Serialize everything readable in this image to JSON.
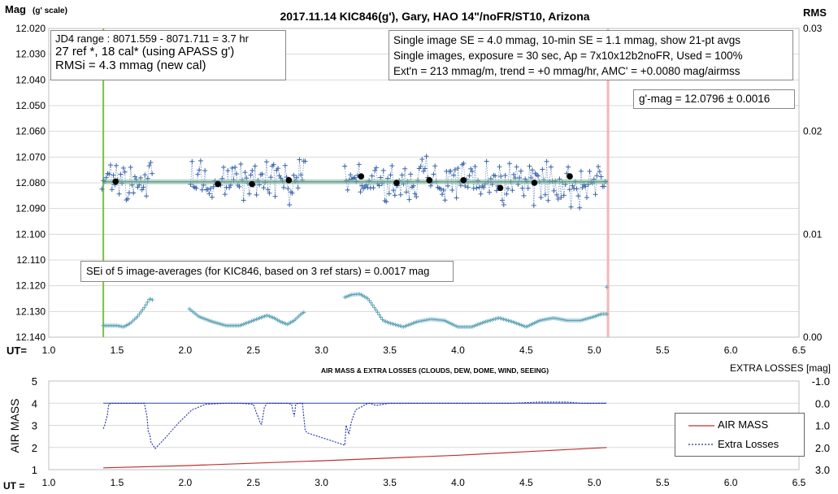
{
  "chart_data": [
    {
      "type": "scatter",
      "title": "2017.11.14  KIC846(g'),  Gary, HAO  14\"/noFR/ST10,  Arizona",
      "ylabel_main": "Mag",
      "ylabel_sub": "(g' scale)",
      "y2label": "RMS",
      "xlabel": "UT=",
      "xlim": [
        1.0,
        6.5
      ],
      "ylim": [
        12.14,
        12.02
      ],
      "y2lim": [
        0.0,
        0.03
      ],
      "x_ticks": [
        "1.0",
        "1.5",
        "2.0",
        "2.5",
        "3.0",
        "3.5",
        "4.0",
        "4.5",
        "5.0",
        "5.5",
        "6.0",
        "6.5"
      ],
      "y_ticks": [
        "12.020",
        "12.030",
        "12.040",
        "12.050",
        "12.060",
        "12.070",
        "12.080",
        "12.090",
        "12.100",
        "12.110",
        "12.120",
        "12.130",
        "12.140"
      ],
      "y2_ticks": [
        "0.03",
        "0.02",
        "0.01",
        "0.00"
      ],
      "gridlines": true,
      "mean_mag": 12.0796,
      "start_line_x": 1.4,
      "end_line_x": 5.1,
      "averages": {
        "x": [
          1.49,
          2.24,
          2.49,
          2.76,
          3.29,
          3.55,
          3.79,
          4.04,
          4.31,
          4.56,
          4.82
        ],
        "y": [
          12.0795,
          12.0805,
          12.0805,
          12.079,
          12.0775,
          12.08,
          12.079,
          12.079,
          12.082,
          12.08,
          12.0775
        ]
      },
      "singles_segments": [
        [
          1.39,
          1.76
        ],
        [
          2.04,
          2.88
        ],
        [
          3.17,
          5.09
        ]
      ],
      "singles_color": "#3a64a8",
      "rms_color": "#57a0b4",
      "rms_points": {
        "x": [
          1.4,
          1.45,
          1.5,
          1.55,
          1.6,
          1.65,
          1.7,
          1.74,
          1.76,
          2.03,
          2.1,
          2.2,
          2.3,
          2.4,
          2.5,
          2.6,
          2.65,
          2.7,
          2.75,
          2.8,
          2.85,
          2.88,
          3.17,
          3.22,
          3.28,
          3.34,
          3.4,
          3.45,
          3.5,
          3.6,
          3.7,
          3.8,
          3.9,
          4.0,
          4.1,
          4.2,
          4.3,
          4.4,
          4.5,
          4.6,
          4.7,
          4.8,
          4.9,
          5.0,
          5.05,
          5.09
        ],
        "y": [
          12.1355,
          12.1355,
          12.1355,
          12.136,
          12.1345,
          12.132,
          12.1285,
          12.125,
          12.1255,
          12.129,
          12.132,
          12.134,
          12.1355,
          12.1355,
          12.1335,
          12.1315,
          12.1325,
          12.134,
          12.135,
          12.1335,
          12.131,
          12.13,
          12.1245,
          12.1235,
          12.1232,
          12.125,
          12.1295,
          12.1335,
          12.1345,
          12.136,
          12.134,
          12.133,
          12.1335,
          12.136,
          12.136,
          12.134,
          12.1325,
          12.134,
          12.136,
          12.1335,
          12.1325,
          12.1335,
          12.1335,
          12.132,
          12.131,
          12.131
        ]
      },
      "rms_outlier": {
        "x": 5.09,
        "y": 12.1205
      }
    },
    {
      "type": "line",
      "title": "AIR MASS & EXTRA LOSSES (CLOUDS, DEW, DOME, WIND, SEEING)",
      "ylabel": "AIR MASS",
      "y2label": "EXTRA LOSSES [mag]",
      "xlabel": "UT =",
      "xlim": [
        1.0,
        6.5
      ],
      "ylim": [
        1,
        5
      ],
      "y2lim": [
        -1.0,
        3.0
      ],
      "x_ticks": [
        "1.0",
        "1.5",
        "2.0",
        "2.5",
        "3.0",
        "3.5",
        "4.0",
        "4.5",
        "5.0",
        "5.5",
        "6.0",
        "6.5"
      ],
      "y_ticks": [
        "5",
        "4",
        "3",
        "2",
        "1"
      ],
      "y2_ticks": [
        "-1.0",
        "0.0",
        "1.0",
        "2.0",
        "3.0"
      ],
      "gridlines": true,
      "legend": {
        "position": "right",
        "entries": [
          "AIR MASS",
          "Extra Losses"
        ]
      },
      "series": [
        {
          "name": "AIR MASS",
          "color": "#c03030",
          "x": [
            1.4,
            2.0,
            3.0,
            4.0,
            5.09
          ],
          "y": [
            1.08,
            1.18,
            1.4,
            1.65,
            2.0
          ]
        },
        {
          "name": "Extra Losses",
          "color": "#1f2fa8",
          "x": [
            1.4,
            1.41,
            1.43,
            1.44,
            1.46,
            1.48,
            1.5,
            1.55,
            1.6,
            1.65,
            1.7,
            1.71,
            1.72,
            1.73,
            1.74,
            1.75,
            1.76,
            1.78,
            1.85,
            1.95,
            2.05,
            2.15,
            2.3,
            2.4,
            2.5,
            2.52,
            2.54,
            2.55,
            2.56,
            2.57,
            2.58,
            2.6,
            2.62,
            2.65,
            2.7,
            2.75,
            2.78,
            2.79,
            2.8,
            2.81,
            2.83,
            2.86,
            2.88,
            2.9,
            3.0,
            3.1,
            3.17,
            3.18,
            3.2,
            3.22,
            3.25,
            3.28,
            3.3,
            3.32,
            3.35,
            3.4,
            3.5,
            3.6,
            3.7,
            3.8,
            3.9,
            4.0,
            4.2,
            4.4,
            4.6,
            4.8,
            4.9,
            5.0,
            5.09
          ],
          "y": [
            1.15,
            1.0,
            0.5,
            0.05,
            0.0,
            0.0,
            0.0,
            0.0,
            0.0,
            0.0,
            0.0,
            0.3,
            0.6,
            1.3,
            1.4,
            1.8,
            1.85,
            2.05,
            1.6,
            0.9,
            0.3,
            0.05,
            0.0,
            0.0,
            0.05,
            0.4,
            0.7,
            0.9,
            0.95,
            0.6,
            0.2,
            0.0,
            0.0,
            0.0,
            0.0,
            0.0,
            0.05,
            0.35,
            0.6,
            0.05,
            0.0,
            0.0,
            1.25,
            1.35,
            1.55,
            1.75,
            1.9,
            1.0,
            1.4,
            0.8,
            0.3,
            0.2,
            0.15,
            0.05,
            0.0,
            0.1,
            0.0,
            0.0,
            0.0,
            0.0,
            0.0,
            0.0,
            0.0,
            0.0,
            -0.05,
            -0.05,
            0.0,
            0.0,
            0.0
          ]
        }
      ]
    }
  ],
  "infobox1": {
    "line1": "JD4 range : 8071.559 - 8071.711 = 3.7  hr",
    "line2": "27 ref *, 18 cal* (using APASS g')",
    "line3": "RMSi = 4.3 mmag (new cal)"
  },
  "infobox2": {
    "line1": "Single image SE = 4.0 mmag, 10-min SE = 1.1 mmag, show  21-pt avgs",
    "line2": "Single images, exposure = 30 sec, Ap = 7x10x12b2noFR,  Used = 100%",
    "line3": "Ext'n = 213 mmag/m, trend =  +0 mmag/hr, AMC' = +0.0080 mag/airmss"
  },
  "gmag_label": "g'-mag = 12.0796 ± 0.0016",
  "sei_label": "SEi of 5 image-averages (for KIC846, based on 3 ref stars) = 0.0017  mag"
}
